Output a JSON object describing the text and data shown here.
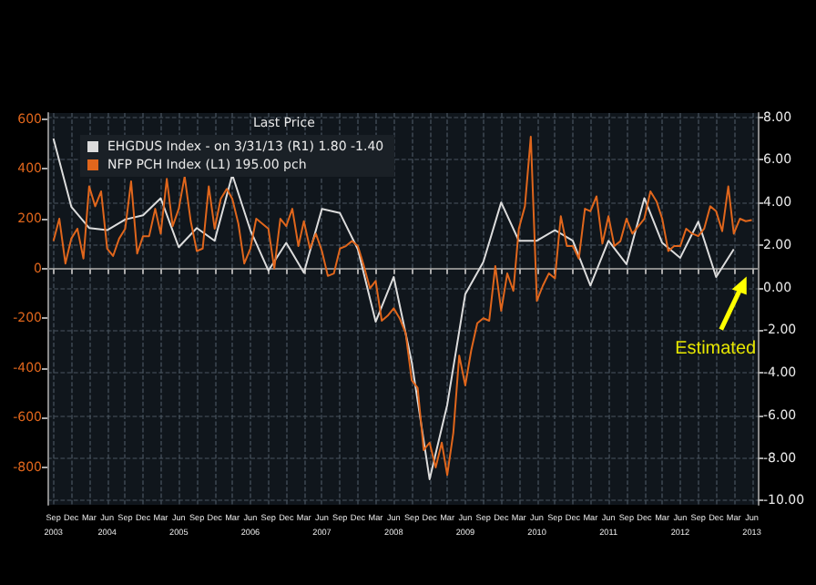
{
  "chart_data": {
    "type": "line",
    "legend_title": "Last Price",
    "legend": "top left",
    "grid": true,
    "xlim": [
      "2003-08",
      "2013-07"
    ],
    "xticks": [
      {
        "value": "2003-09",
        "label": "Sep\n2003"
      },
      {
        "value": "2003-12",
        "label": "Dec"
      },
      {
        "value": "2004-03",
        "label": "Mar"
      },
      {
        "value": "2004-06",
        "label": "Jun\n2004"
      },
      {
        "value": "2004-09",
        "label": "Sep"
      },
      {
        "value": "2004-12",
        "label": "Dec"
      },
      {
        "value": "2005-03",
        "label": "Mar"
      },
      {
        "value": "2005-06",
        "label": "Jun\n2005"
      },
      {
        "value": "2005-09",
        "label": "Sep"
      },
      {
        "value": "2005-12",
        "label": "Dec"
      },
      {
        "value": "2006-03",
        "label": "Mar"
      },
      {
        "value": "2006-06",
        "label": "Jun\n2006"
      },
      {
        "value": "2006-09",
        "label": "Sep"
      },
      {
        "value": "2006-12",
        "label": "Dec"
      },
      {
        "value": "2007-03",
        "label": "Mar"
      },
      {
        "value": "2007-06",
        "label": "Jun\n2007"
      },
      {
        "value": "2007-09",
        "label": "Sep"
      },
      {
        "value": "2007-12",
        "label": "Dec"
      },
      {
        "value": "2008-03",
        "label": "Mar"
      },
      {
        "value": "2008-06",
        "label": "Jun\n2008"
      },
      {
        "value": "2008-09",
        "label": "Sep"
      },
      {
        "value": "2008-12",
        "label": "Dec"
      },
      {
        "value": "2009-03",
        "label": "Mar"
      },
      {
        "value": "2009-06",
        "label": "Jun\n2009"
      },
      {
        "value": "2009-09",
        "label": "Sep"
      },
      {
        "value": "2009-12",
        "label": "Dec"
      },
      {
        "value": "2010-03",
        "label": "Mar"
      },
      {
        "value": "2010-06",
        "label": "Jun\n2010"
      },
      {
        "value": "2010-09",
        "label": "Sep"
      },
      {
        "value": "2010-12",
        "label": "Dec"
      },
      {
        "value": "2011-03",
        "label": "Mar"
      },
      {
        "value": "2011-06",
        "label": "Jun\n2011"
      },
      {
        "value": "2011-09",
        "label": "Sep"
      },
      {
        "value": "2011-12",
        "label": "Dec"
      },
      {
        "value": "2012-03",
        "label": "Mar"
      },
      {
        "value": "2012-06",
        "label": "Jun\n2012"
      },
      {
        "value": "2012-09",
        "label": "Sep"
      },
      {
        "value": "2012-12",
        "label": "Dec"
      },
      {
        "value": "2013-03",
        "label": "Mar"
      },
      {
        "value": "2013-06",
        "label": "Jun\n2013"
      }
    ],
    "ylim": [
      -950,
      625
    ],
    "yticks": [
      600,
      400,
      200,
      0,
      -200,
      -400,
      -600,
      -800
    ],
    "y2lim": [
      -10.2,
      8.2
    ],
    "y2ticks": [
      {
        "value": 8,
        "label": "8.00"
      },
      {
        "value": 6,
        "label": "6.00"
      },
      {
        "value": 4,
        "label": "4.00"
      },
      {
        "value": 2,
        "label": "2.00"
      },
      {
        "value": 0,
        "label": "0.00"
      },
      {
        "value": -2,
        "label": "-2.00"
      },
      {
        "value": -4,
        "label": "-4.00"
      },
      {
        "value": -6,
        "label": "-6.00"
      },
      {
        "value": -8,
        "label": "-8.00"
      },
      {
        "value": -10,
        "label": "-10.00"
      }
    ],
    "annotations": [
      "Estimated"
    ],
    "series": [
      {
        "name": "EHGDUS Index - on 3/31/13 (R1) 1.80 -1.40",
        "color": "#dcdcdc",
        "axis": "y2",
        "x": [
          "2003-09",
          "2003-12",
          "2004-03",
          "2004-06",
          "2004-09",
          "2004-12",
          "2005-03",
          "2005-06",
          "2005-09",
          "2005-12",
          "2006-03",
          "2006-06",
          "2006-09",
          "2006-12",
          "2007-03",
          "2007-06",
          "2007-09",
          "2007-12",
          "2008-03",
          "2008-06",
          "2008-09",
          "2008-12",
          "2009-03",
          "2009-06",
          "2009-09",
          "2009-12",
          "2010-03",
          "2010-06",
          "2010-09",
          "2010-12",
          "2011-03",
          "2011-06",
          "2011-09",
          "2011-12",
          "2012-03",
          "2012-06",
          "2012-09",
          "2012-12",
          "2013-03"
        ],
        "values": [
          7.0,
          3.8,
          2.8,
          2.7,
          3.2,
          3.4,
          4.2,
          1.9,
          2.8,
          2.2,
          5.3,
          2.7,
          0.8,
          2.1,
          0.7,
          3.7,
          3.5,
          1.8,
          -1.6,
          0.5,
          -3.5,
          -9.0,
          -5.5,
          -0.3,
          1.2,
          4.0,
          2.2,
          2.2,
          2.7,
          2.2,
          0.1,
          2.2,
          1.1,
          4.2,
          2.1,
          1.4,
          3.1,
          0.5,
          1.8
        ]
      },
      {
        "name": "NFP PCH Index (L1) 195.00 pch",
        "color": "#e0661c",
        "x": [
          "2003-09",
          "2003-10",
          "2003-11",
          "2003-12",
          "2004-01",
          "2004-02",
          "2004-03",
          "2004-04",
          "2004-05",
          "2004-06",
          "2004-07",
          "2004-08",
          "2004-09",
          "2004-10",
          "2004-11",
          "2004-12",
          "2005-01",
          "2005-02",
          "2005-03",
          "2005-04",
          "2005-05",
          "2005-06",
          "2005-07",
          "2005-08",
          "2005-09",
          "2005-10",
          "2005-11",
          "2005-12",
          "2006-01",
          "2006-02",
          "2006-03",
          "2006-04",
          "2006-05",
          "2006-06",
          "2006-07",
          "2006-08",
          "2006-09",
          "2006-10",
          "2006-11",
          "2006-12",
          "2007-01",
          "2007-02",
          "2007-03",
          "2007-04",
          "2007-05",
          "2007-06",
          "2007-07",
          "2007-08",
          "2007-09",
          "2007-10",
          "2007-11",
          "2007-12",
          "2008-01",
          "2008-02",
          "2008-03",
          "2008-04",
          "2008-05",
          "2008-06",
          "2008-07",
          "2008-08",
          "2008-09",
          "2008-10",
          "2008-11",
          "2008-12",
          "2009-01",
          "2009-02",
          "2009-03",
          "2009-04",
          "2009-05",
          "2009-06",
          "2009-07",
          "2009-08",
          "2009-09",
          "2009-10",
          "2009-11",
          "2009-12",
          "2010-01",
          "2010-02",
          "2010-03",
          "2010-04",
          "2010-05",
          "2010-06",
          "2010-07",
          "2010-08",
          "2010-09",
          "2010-10",
          "2010-11",
          "2010-12",
          "2011-01",
          "2011-02",
          "2011-03",
          "2011-04",
          "2011-05",
          "2011-06",
          "2011-07",
          "2011-08",
          "2011-09",
          "2011-10",
          "2011-11",
          "2011-12",
          "2012-01",
          "2012-02",
          "2012-03",
          "2012-04",
          "2012-05",
          "2012-06",
          "2012-07",
          "2012-08",
          "2012-09",
          "2012-10",
          "2012-11",
          "2012-12",
          "2013-01",
          "2013-02",
          "2013-03",
          "2013-04",
          "2013-05",
          "2013-06"
        ],
        "values": [
          110,
          200,
          20,
          120,
          160,
          40,
          330,
          250,
          310,
          80,
          50,
          120,
          160,
          350,
          60,
          130,
          130,
          240,
          140,
          360,
          170,
          240,
          370,
          190,
          70,
          80,
          330,
          160,
          280,
          320,
          280,
          180,
          20,
          80,
          200,
          180,
          160,
          0,
          200,
          170,
          240,
          90,
          190,
          80,
          140,
          70,
          -30,
          -20,
          80,
          90,
          110,
          90,
          10,
          -80,
          -50,
          -210,
          -190,
          -160,
          -200,
          -260,
          -450,
          -480,
          -730,
          -700,
          -800,
          -700,
          -830,
          -660,
          -350,
          -470,
          -330,
          -220,
          -200,
          -210,
          10,
          -170,
          -20,
          -90,
          160,
          250,
          530,
          -130,
          -70,
          -20,
          -40,
          210,
          90,
          90,
          40,
          240,
          230,
          290,
          100,
          210,
          90,
          110,
          200,
          140,
          170,
          200,
          310,
          270,
          200,
          70,
          90,
          90,
          160,
          140,
          130,
          160,
          250,
          230,
          150,
          330,
          140,
          200,
          190,
          195
        ]
      }
    ]
  }
}
